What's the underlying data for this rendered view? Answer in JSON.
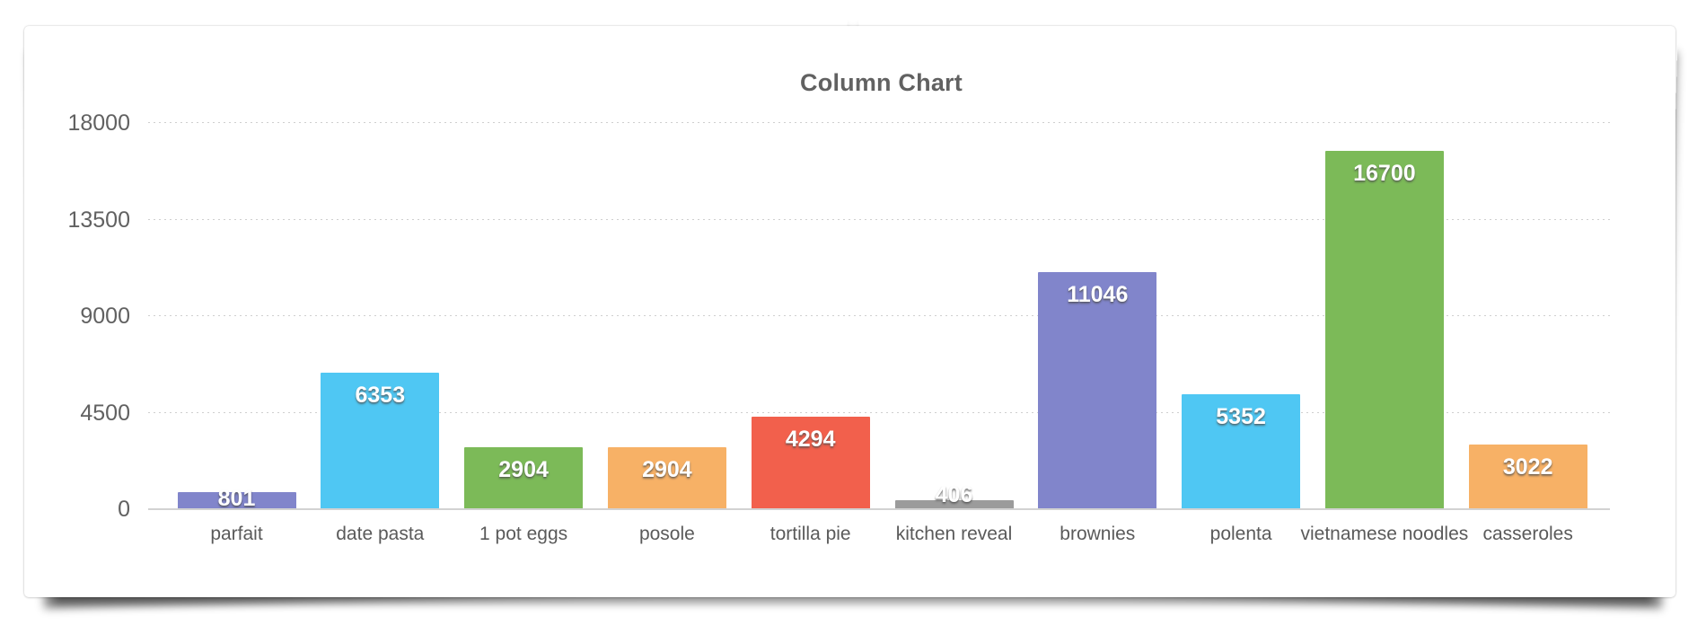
{
  "page": {
    "background_color": "#ffffff",
    "card_background_color": "#ffffff"
  },
  "chart_data": {
    "type": "bar",
    "title": "Column Chart",
    "categories": [
      "parfait",
      "date pasta",
      "1 pot eggs",
      "posole",
      "tortilla pie",
      "kitchen reveal",
      "brownies",
      "polenta",
      "vietnamese noodles",
      "casseroles"
    ],
    "values": [
      801,
      6353,
      2904,
      2904,
      4294,
      406,
      11046,
      5352,
      16700,
      3022
    ],
    "bar_colors": [
      "#8185cb",
      "#4fc7f3",
      "#7cba58",
      "#f7b166",
      "#f2604c",
      "#9b9b9b",
      "#8185cb",
      "#4fc7f3",
      "#7cba58",
      "#f7b166"
    ],
    "value_label_color": "#ffffff",
    "y_ticks": [
      0,
      4500,
      9000,
      13500,
      18000
    ],
    "ylim": [
      0,
      18000
    ],
    "xlabel": "",
    "ylabel": "",
    "grid": "horizontal-dotted",
    "legend": "none",
    "title_color": "#616161",
    "axis_text_color": "#616161",
    "grid_color": "#cfcfcf",
    "axis_line_color": "#d2d2d2"
  }
}
